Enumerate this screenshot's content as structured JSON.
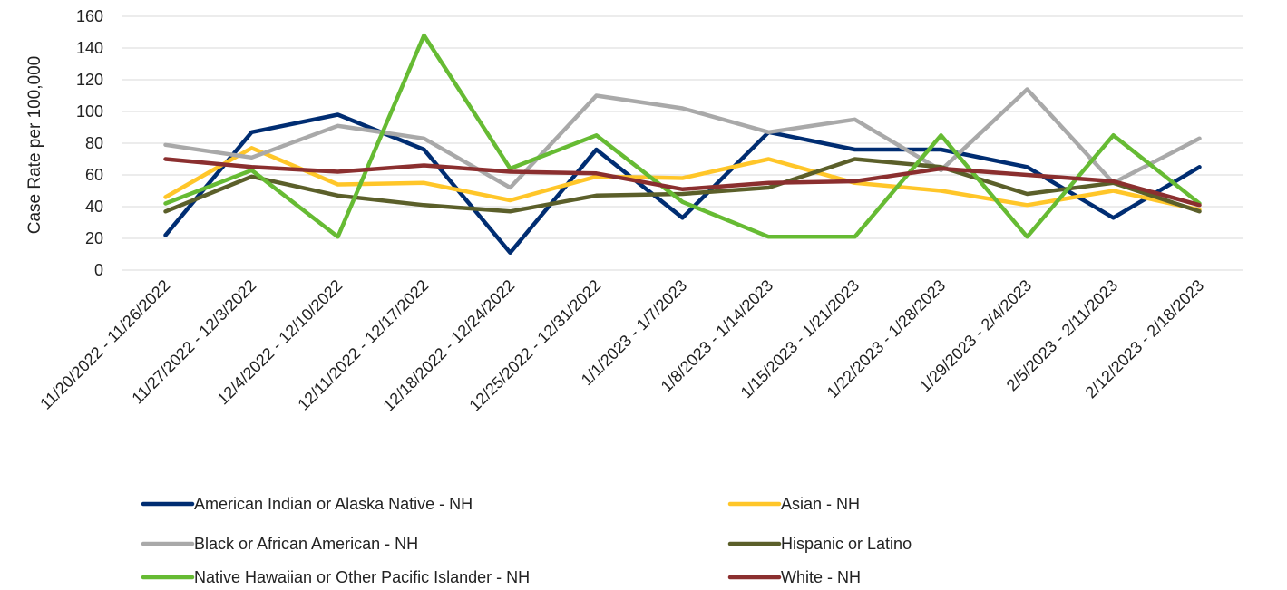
{
  "chart_data": {
    "type": "line",
    "title": "",
    "xlabel": "",
    "ylabel": "Case Rate per 100,000",
    "ylim": [
      0,
      160
    ],
    "yticks": [
      0,
      20,
      40,
      60,
      80,
      100,
      120,
      140,
      160
    ],
    "grid": true,
    "legend_position": "bottom",
    "categories": [
      "11/20/2022 - 11/26/2022",
      "11/27/2022 - 12/3/2022",
      "12/4/2022 - 12/10/2022",
      "12/11/2022 - 12/17/2022",
      "12/18/2022 - 12/24/2022",
      "12/25/2022 - 12/31/2022",
      "1/1/2023 - 1/7/2023",
      "1/8/2023 - 1/14/2023",
      "1/15/2023 - 1/21/2023",
      "1/22/2023 - 1/28/2023",
      "1/29/2023 - 2/4/2023",
      "2/5/2023 - 2/11/2023",
      "2/12/2023 - 2/18/2023"
    ],
    "series": [
      {
        "name": "American Indian or Alaska Native - NH",
        "color": "#002D72",
        "values": [
          22,
          87,
          98,
          76,
          11,
          76,
          33,
          87,
          76,
          76,
          65,
          33,
          65
        ]
      },
      {
        "name": "Asian - NH",
        "color": "#FFC629",
        "values": [
          46,
          77,
          54,
          55,
          44,
          59,
          58,
          70,
          55,
          50,
          41,
          50,
          38
        ]
      },
      {
        "name": "Black or African American - NH",
        "color": "#A9A9A9",
        "values": [
          79,
          71,
          91,
          83,
          52,
          110,
          102,
          87,
          95,
          63,
          114,
          55,
          83
        ]
      },
      {
        "name": "Hispanic or Latino",
        "color": "#5B5F2A",
        "values": [
          37,
          59,
          47,
          41,
          37,
          47,
          48,
          52,
          70,
          65,
          48,
          55,
          37
        ]
      },
      {
        "name": "Native Hawaiian or Other Pacific Islander - NH",
        "color": "#66BB33",
        "values": [
          42,
          63,
          21,
          148,
          64,
          85,
          43,
          21,
          21,
          85,
          21,
          85,
          42
        ]
      },
      {
        "name": "White - NH",
        "color": "#8B2F2F",
        "values": [
          70,
          65,
          62,
          66,
          62,
          61,
          51,
          55,
          56,
          64,
          60,
          56,
          41
        ]
      }
    ]
  }
}
